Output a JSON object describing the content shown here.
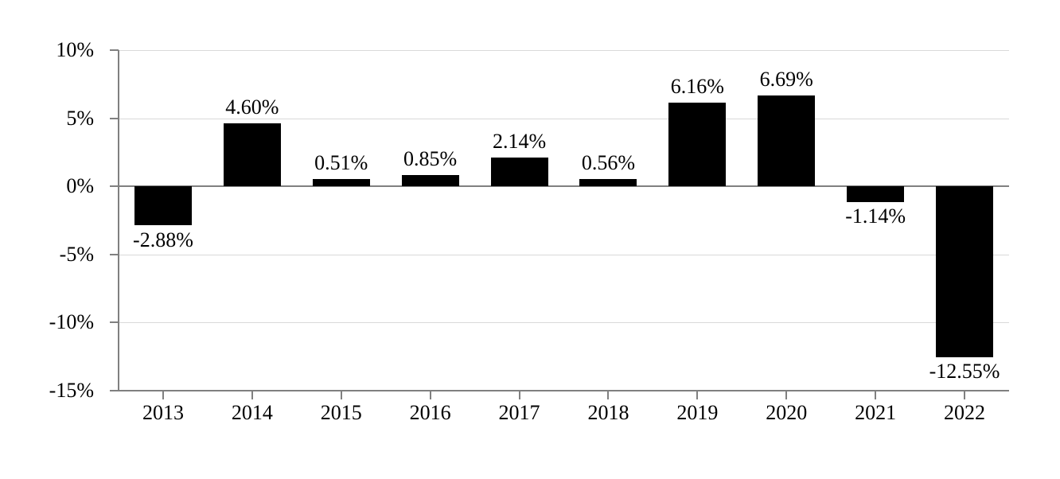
{
  "chart_data": {
    "type": "bar",
    "categories": [
      "2013",
      "2014",
      "2015",
      "2016",
      "2017",
      "2018",
      "2019",
      "2020",
      "2021",
      "2022"
    ],
    "values": [
      -2.88,
      4.6,
      0.51,
      0.85,
      2.14,
      0.56,
      6.16,
      6.69,
      -1.14,
      -12.55
    ],
    "value_labels": [
      "-2.88%",
      "4.60%",
      "0.51%",
      "0.85%",
      "2.14%",
      "0.56%",
      "6.16%",
      "6.69%",
      "-1.14%",
      "-12.55%"
    ],
    "title": "",
    "xlabel": "",
    "ylabel": "",
    "ylim": [
      -15,
      10
    ],
    "ytick_step": 5,
    "ytick_values": [
      10,
      5,
      0,
      -5,
      -10,
      -15
    ],
    "ytick_labels": [
      "10%",
      "5%",
      "0%",
      "-5%",
      "-10%",
      "-15%"
    ],
    "grid": true,
    "legend_position": "none",
    "colors": {
      "bar": "#000000",
      "gridline": "#d9d9d9",
      "axis": "#808080",
      "text": "#000000",
      "background": "#ffffff"
    }
  }
}
